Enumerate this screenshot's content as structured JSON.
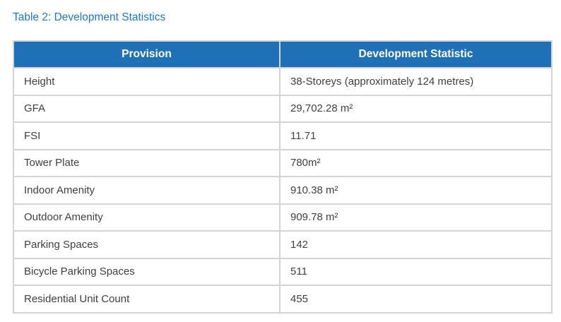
{
  "page": {
    "title": "Table 2: Development Statistics"
  },
  "colors": {
    "title_text": "#1b76cf",
    "header_bg": "#1e70b7",
    "header_text": "#ffffff",
    "body_text": "#3f3f3f",
    "border": "#d4d4d4"
  },
  "table": {
    "columns": [
      "Provision",
      "Development Statistic"
    ],
    "rows": [
      {
        "provision": "Height",
        "statistic": "38-Storeys (approximately 124 metres)"
      },
      {
        "provision": "GFA",
        "statistic": "29,702.28 m²"
      },
      {
        "provision": "FSI",
        "statistic": "11.71"
      },
      {
        "provision": "Tower Plate",
        "statistic": "780m²"
      },
      {
        "provision": "Indoor Amenity",
        "statistic": "910.38 m²"
      },
      {
        "provision": "Outdoor Amenity",
        "statistic": "909.78 m²"
      },
      {
        "provision": "Parking Spaces",
        "statistic": "142"
      },
      {
        "provision": "Bicycle Parking Spaces",
        "statistic": "511"
      },
      {
        "provision": "Residential Unit Count",
        "statistic": "455"
      }
    ]
  }
}
